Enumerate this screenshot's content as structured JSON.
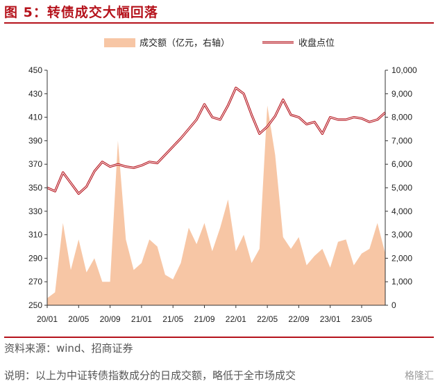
{
  "figure": {
    "title": "图 5：转债成交大幅回落",
    "source": "资料来源：wind、招商证券",
    "note": "说明：以上为中证转债指数成分的日成交额，略低于全市场成交",
    "watermark": "格隆汇"
  },
  "chart_data": {
    "type": "line+area",
    "x_tick_labels": [
      "20/01",
      "20/05",
      "20/09",
      "21/01",
      "21/05",
      "21/09",
      "22/01",
      "22/05",
      "22/09",
      "23/01",
      "23/05"
    ],
    "x_range": [
      "2020-01",
      "2023-08"
    ],
    "left_axis": {
      "ylim": [
        250,
        450
      ],
      "ticks": [
        250,
        270,
        290,
        310,
        330,
        350,
        370,
        390,
        410,
        430,
        450
      ]
    },
    "right_axis": {
      "ylim": [
        0,
        10000
      ],
      "ticks": [
        "0",
        "1,000",
        "2,000",
        "3,000",
        "4,000",
        "5,000",
        "6,000",
        "7,000",
        "8,000",
        "9,000",
        "10,000"
      ]
    },
    "legend_position": "top",
    "series": [
      {
        "name": "成交额（亿元，右轴）",
        "type": "area",
        "axis": "right",
        "color": "#f7c6a5",
        "x": [
          "2020-01",
          "2020-02",
          "2020-03",
          "2020-04",
          "2020-05",
          "2020-06",
          "2020-07",
          "2020-08",
          "2020-09",
          "2020-10",
          "2020-11",
          "2020-12",
          "2021-01",
          "2021-02",
          "2021-03",
          "2021-04",
          "2021-05",
          "2021-06",
          "2021-07",
          "2021-08",
          "2021-09",
          "2021-10",
          "2021-11",
          "2021-12",
          "2022-01",
          "2022-02",
          "2022-03",
          "2022-04",
          "2022-05",
          "2022-06",
          "2022-07",
          "2022-08",
          "2022-09",
          "2022-10",
          "2022-11",
          "2022-12",
          "2023-01",
          "2023-02",
          "2023-03",
          "2023-04",
          "2023-05",
          "2023-06",
          "2023-07",
          "2023-08"
        ],
        "values": [
          300,
          550,
          3500,
          1500,
          2800,
          1400,
          2000,
          1000,
          1000,
          7000,
          2800,
          1500,
          1800,
          2800,
          2500,
          1300,
          1100,
          1800,
          3300,
          2600,
          3500,
          2300,
          3300,
          4500,
          2300,
          3000,
          1800,
          2400,
          8500,
          6400,
          2900,
          2400,
          2900,
          1700,
          2100,
          2400,
          1600,
          2700,
          2800,
          1700,
          2200,
          2400,
          3500,
          2200
        ]
      },
      {
        "name": "收盘点位",
        "type": "line",
        "axis": "left",
        "color": "#b5121b",
        "x": [
          "2020-01",
          "2020-02",
          "2020-03",
          "2020-04",
          "2020-05",
          "2020-06",
          "2020-07",
          "2020-08",
          "2020-09",
          "2020-10",
          "2020-11",
          "2020-12",
          "2021-01",
          "2021-02",
          "2021-03",
          "2021-04",
          "2021-05",
          "2021-06",
          "2021-07",
          "2021-08",
          "2021-09",
          "2021-10",
          "2021-11",
          "2021-12",
          "2022-01",
          "2022-02",
          "2022-03",
          "2022-04",
          "2022-05",
          "2022-06",
          "2022-07",
          "2022-08",
          "2022-09",
          "2022-10",
          "2022-11",
          "2022-12",
          "2023-01",
          "2023-02",
          "2023-03",
          "2023-04",
          "2023-05",
          "2023-06",
          "2023-07",
          "2023-08"
        ],
        "values": [
          350,
          347,
          363,
          354,
          345,
          351,
          364,
          372,
          368,
          370,
          368,
          367,
          369,
          372,
          371,
          378,
          385,
          392,
          400,
          408,
          421,
          410,
          408,
          420,
          435,
          430,
          412,
          396,
          402,
          411,
          425,
          412,
          410,
          404,
          406,
          396,
          410,
          408,
          408,
          410,
          409,
          406,
          408,
          414
        ]
      }
    ]
  }
}
